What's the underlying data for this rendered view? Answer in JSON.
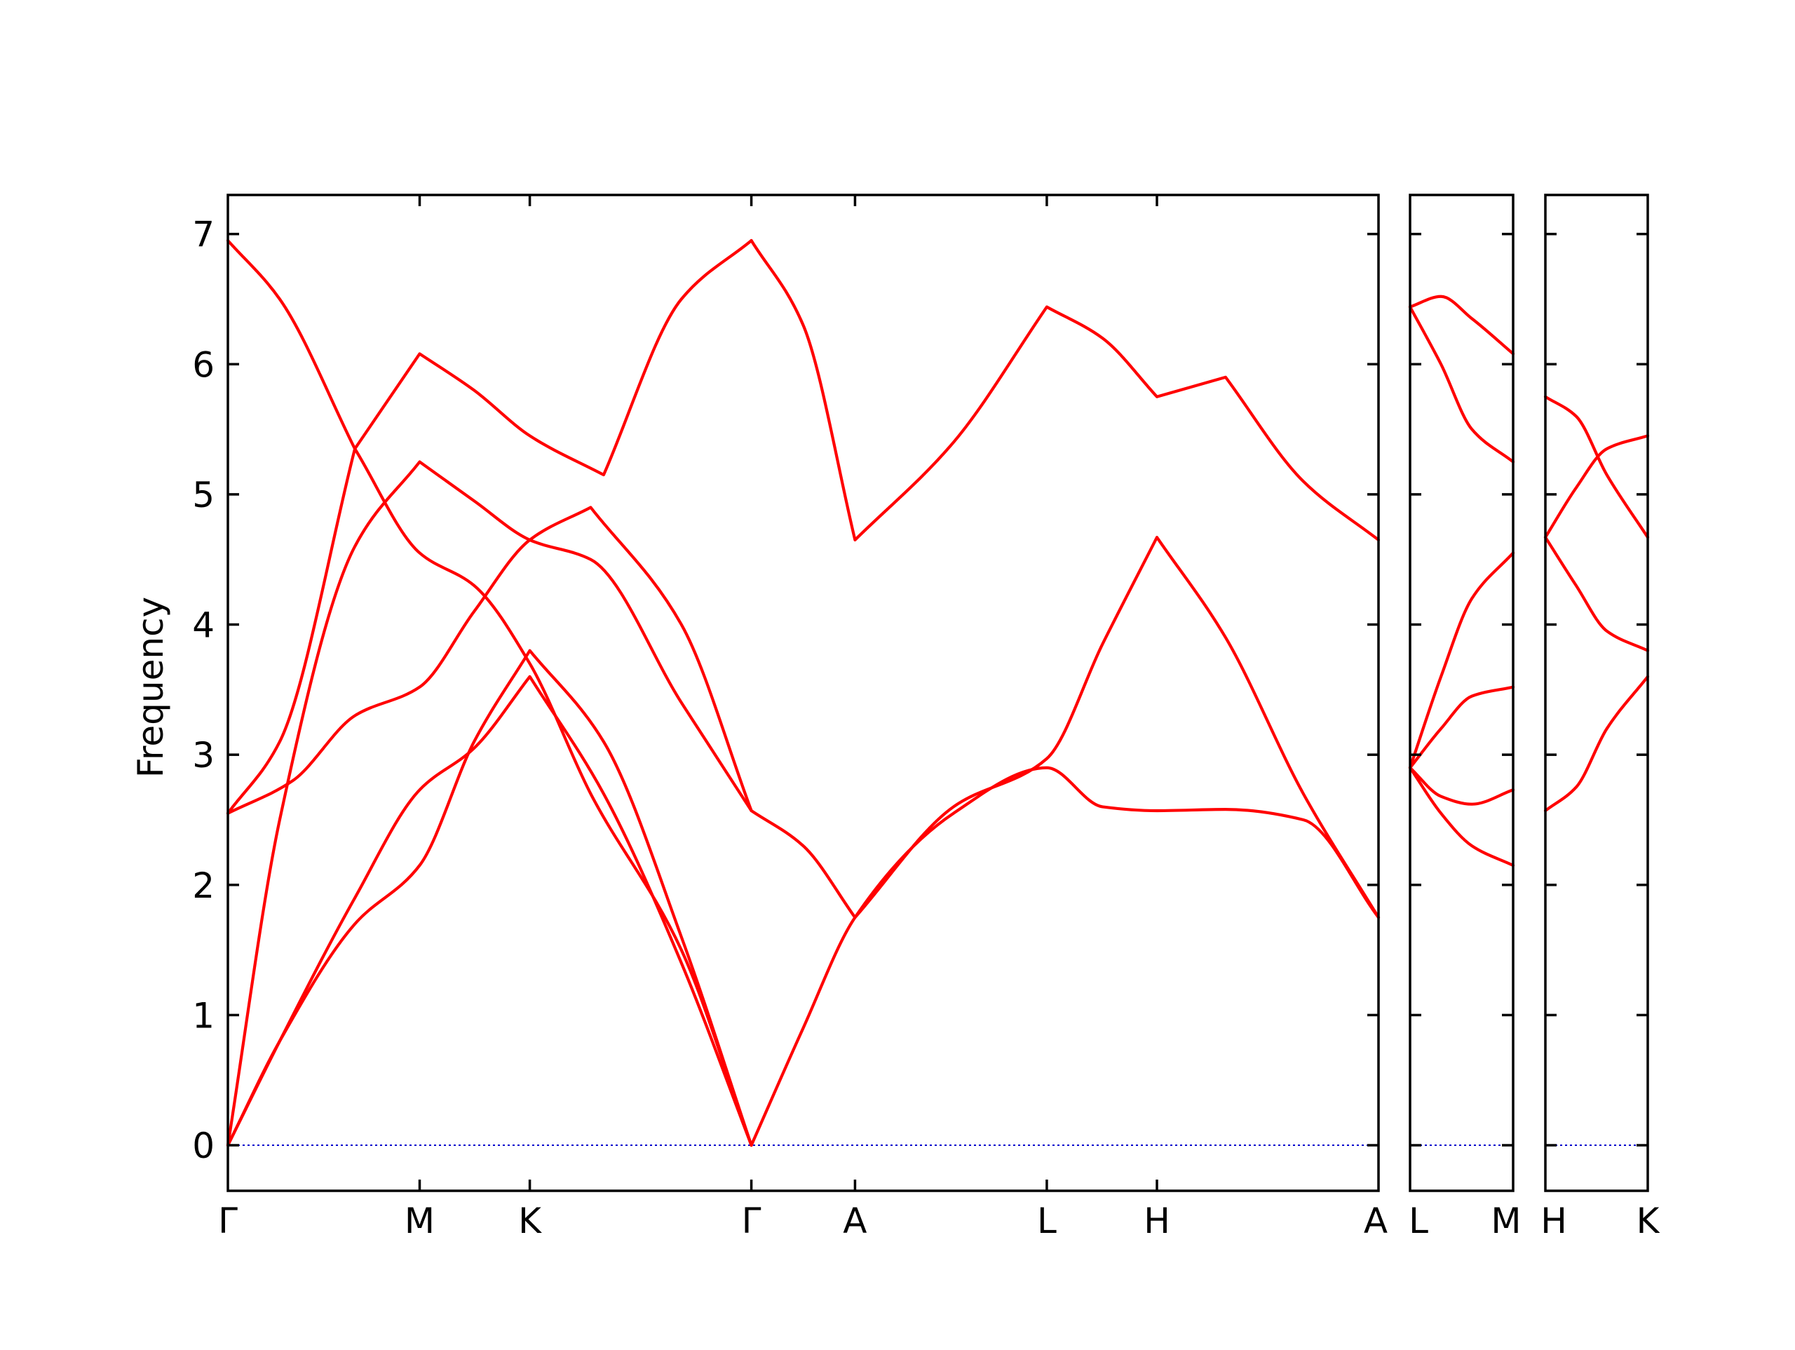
{
  "chart_data": {
    "type": "line",
    "title": "",
    "xlabel": "",
    "ylabel": "Frequency",
    "ylim": [
      -0.35,
      7.3
    ],
    "yticks": [
      0,
      1,
      2,
      3,
      4,
      5,
      6,
      7
    ],
    "grid": false,
    "line_color": "#ff0000",
    "zero_line_color": "#0000cc",
    "panels": [
      {
        "id": "p1",
        "points": [
          "Γ",
          "M",
          "K",
          "Γ",
          "A",
          "L",
          "H",
          "A"
        ],
        "x": [
          0,
          1.48,
          2.33,
          4.04,
          4.84,
          6.32,
          7.17,
          8.88
        ],
        "xlim": [
          0,
          8.88
        ],
        "bands": [
          {
            "x": [
              0,
              0.4,
              0.98,
              1.48,
              1.9,
              2.33,
              2.9,
              3.5,
              4.04
            ],
            "y": [
              0,
              0.8,
              1.7,
              2.15,
              3.1,
              3.8,
              3.1,
              1.6,
              0
            ]
          },
          {
            "x": [
              0,
              0.4,
              0.98,
              1.48,
              1.9,
              2.33,
              2.9,
              3.5,
              4.04
            ],
            "y": [
              0,
              0.8,
              1.9,
              2.73,
              3.05,
              3.6,
              2.7,
              1.4,
              0
            ]
          },
          {
            "x": [
              0,
              0.5,
              0.98,
              1.48,
              1.9,
              2.33,
              2.8,
              3.5,
              4.04
            ],
            "y": [
              2.55,
              2.8,
              3.3,
              3.52,
              4.1,
              4.65,
              4.9,
              4.0,
              2.57
            ]
          },
          {
            "x": [
              0,
              0.4,
              0.98,
              1.48,
              1.9,
              2.33,
              2.8,
              3.5,
              4.04
            ],
            "y": [
              2.55,
              3.1,
              5.35,
              4.55,
              4.3,
              3.7,
              2.7,
              1.5,
              0
            ]
          },
          {
            "x": [
              0,
              0.4,
              0.98,
              1.48,
              1.9,
              2.33,
              2.8,
              3.5,
              4.04
            ],
            "y": [
              0,
              2.5,
              4.6,
              5.25,
              4.95,
              4.65,
              4.5,
              3.4,
              2.57
            ]
          },
          {
            "x": [
              0,
              0.4,
              0.98,
              1.48,
              1.9,
              2.33,
              2.9,
              3.5,
              4.04
            ],
            "y": [
              6.95,
              6.5,
              5.35,
              6.08,
              5.8,
              5.45,
              5.15,
              6.5,
              6.95
            ]
          },
          {
            "x": [
              4.04,
              4.44,
              4.84,
              5.6,
              6.32,
              6.75,
              7.17,
              7.7,
              8.3,
              8.88
            ],
            "y": [
              2.57,
              2.3,
              1.75,
              2.6,
              2.97,
              3.85,
              4.67,
              3.9,
              2.7,
              1.75
            ]
          },
          {
            "x": [
              4.04,
              4.44,
              4.84,
              5.6,
              6.32,
              6.75,
              7.17,
              7.7,
              8.3,
              8.88
            ],
            "y": [
              0,
              0.9,
              1.75,
              2.55,
              2.9,
              2.6,
              2.57,
              2.58,
              2.5,
              1.75
            ]
          },
          {
            "x": [
              4.04,
              4.44,
              4.84,
              5.6,
              6.32,
              6.75,
              7.17,
              7.7,
              8.3,
              8.88
            ],
            "y": [
              6.95,
              6.3,
              4.65,
              5.4,
              6.44,
              6.2,
              5.75,
              5.9,
              5.1,
              4.65
            ]
          }
        ]
      },
      {
        "id": "p2",
        "points": [
          "L",
          "M"
        ],
        "x": [
          0,
          1
        ],
        "xlim": [
          0,
          1
        ],
        "bands": [
          {
            "x": [
              0,
              0.3,
              0.6,
              1
            ],
            "y": [
              2.9,
              2.55,
              2.3,
              2.15
            ]
          },
          {
            "x": [
              0,
              0.3,
              0.6,
              1
            ],
            "y": [
              2.9,
              2.68,
              2.62,
              2.73
            ]
          },
          {
            "x": [
              0,
              0.3,
              0.6,
              1
            ],
            "y": [
              2.9,
              3.2,
              3.45,
              3.52
            ]
          },
          {
            "x": [
              0,
              0.3,
              0.6,
              1
            ],
            "y": [
              2.9,
              3.6,
              4.2,
              4.55
            ]
          },
          {
            "x": [
              0,
              0.3,
              0.6,
              1
            ],
            "y": [
              6.44,
              6.0,
              5.5,
              5.25
            ]
          },
          {
            "x": [
              0,
              0.3,
              0.6,
              1
            ],
            "y": [
              6.44,
              6.52,
              6.35,
              6.08
            ]
          }
        ]
      },
      {
        "id": "p3",
        "points": [
          "H",
          "K"
        ],
        "x": [
          0,
          1
        ],
        "xlim": [
          0,
          1
        ],
        "bands": [
          {
            "x": [
              0,
              0.3,
              0.6,
              1
            ],
            "y": [
              2.57,
              2.75,
              3.2,
              3.6
            ]
          },
          {
            "x": [
              0,
              0.3,
              0.6,
              1
            ],
            "y": [
              4.67,
              4.3,
              3.95,
              3.8
            ]
          },
          {
            "x": [
              0,
              0.3,
              0.6,
              1
            ],
            "y": [
              4.67,
              5.05,
              5.35,
              5.45
            ]
          },
          {
            "x": [
              0,
              0.3,
              0.6,
              1
            ],
            "y": [
              5.75,
              5.6,
              5.15,
              4.67
            ]
          }
        ]
      }
    ]
  }
}
